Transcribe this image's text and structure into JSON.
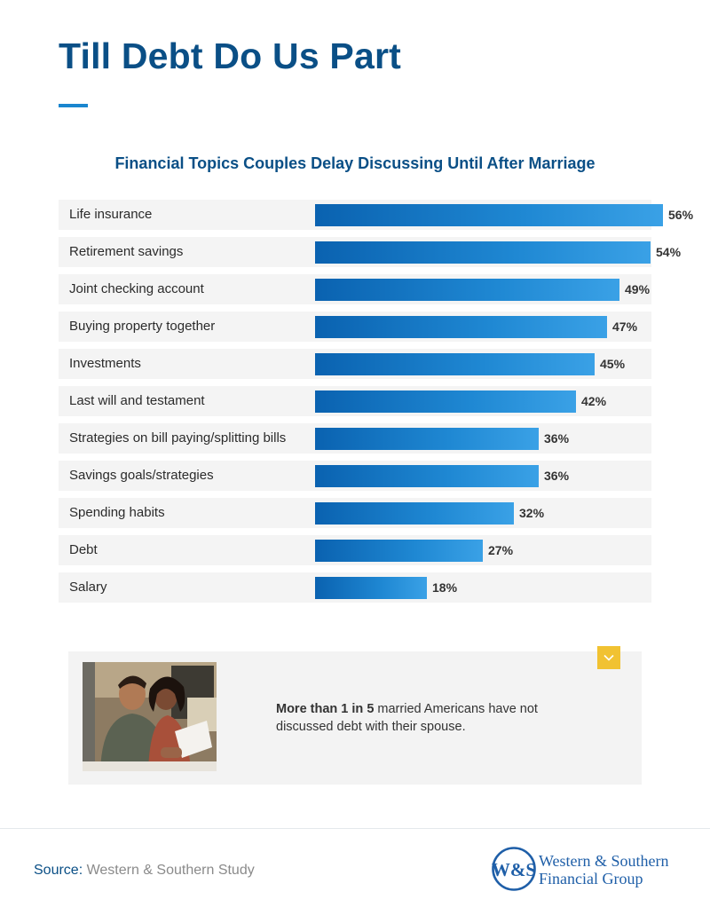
{
  "header": {
    "title": "Till Debt Do Us Part"
  },
  "chart_data": {
    "type": "bar",
    "orientation": "horizontal",
    "title": "Financial Topics Couples Delay Discussing Until After Marriage",
    "categories": [
      "Life insurance",
      "Retirement savings",
      "Joint checking account",
      "Buying property together",
      "Investments",
      "Last will and testament",
      "Strategies on bill paying/splitting bills",
      "Savings goals/strategies",
      "Spending habits",
      "Debt",
      "Salary"
    ],
    "values": [
      56,
      54,
      49,
      47,
      45,
      42,
      36,
      36,
      32,
      27,
      18
    ],
    "value_labels": [
      "56%",
      "54%",
      "49%",
      "47%",
      "45%",
      "42%",
      "36%",
      "36%",
      "32%",
      "27%",
      "18%"
    ],
    "unit": "%",
    "xlim": [
      0,
      100
    ],
    "grid": false,
    "legend": "none",
    "bar_color": "#1a7cc7"
  },
  "callout": {
    "bold_text": "More than 1 in 5",
    "text": " married Americans have not discussed debt with their spouse.",
    "expand_icon": "chevron-down-icon",
    "accent_color": "#f1c232"
  },
  "footer": {
    "source_label": "Source:",
    "source_text": " Western & Southern Study",
    "logo_monogram": "W&S",
    "logo_line1": "Western & Southern",
    "logo_line2": "Financial Group"
  },
  "colors": {
    "title": "#0a4f86",
    "accent": "#1a86cf"
  }
}
